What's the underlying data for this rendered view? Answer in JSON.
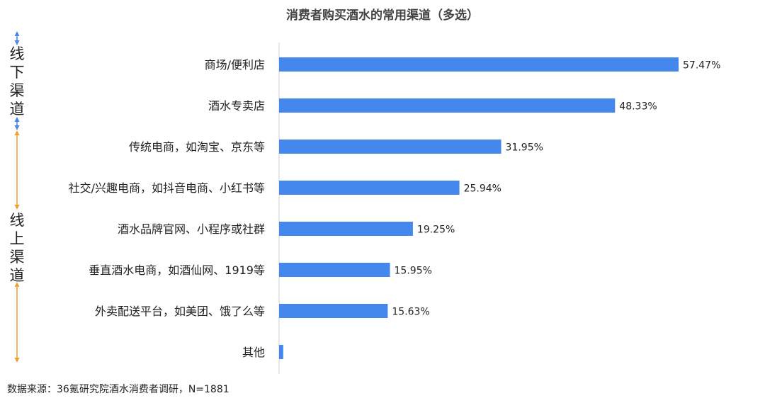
{
  "chart_data": {
    "type": "bar",
    "orientation": "horizontal",
    "title": "消费者购买酒水的常用渠道（多选）",
    "categories": [
      "商场/便利店",
      "酒水专卖店",
      "传统电商，如淘宝、京东等",
      "社交/兴趣电商，如抖音电商、小红书等",
      "酒水品牌官网、小程序或社群",
      "垂直酒水电商，如酒仙网、1919等",
      "外卖配送平台，如美团、饿了么等",
      "其他"
    ],
    "values": [
      57.47,
      48.33,
      31.95,
      25.94,
      19.25,
      15.95,
      15.63,
      0.6
    ],
    "value_labels": [
      "57.47%",
      "48.33%",
      "31.95%",
      "25.94%",
      "19.25%",
      "15.95%",
      "15.63%",
      ""
    ],
    "xlim": [
      0,
      60
    ],
    "grid": false,
    "legend": "none",
    "groups": [
      {
        "label": "线下渠道",
        "chars": [
          "线",
          "下",
          "渠",
          "道"
        ]
      },
      {
        "label": "线上渠道",
        "chars": [
          "线",
          "上",
          "渠",
          "道"
        ]
      }
    ]
  },
  "source_note": "数据来源：36氪研究院酒水消费者调研，N=1881",
  "colors": {
    "bar": "#4488ee",
    "offline_arrow": "#4a86e8",
    "online_arrow": "#f0a030",
    "axis": "#d0d0d0"
  }
}
